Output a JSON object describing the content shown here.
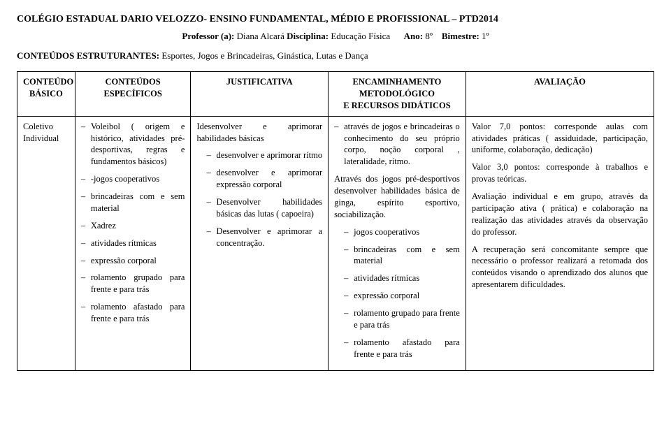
{
  "header": {
    "title": "COLÉGIO ESTADUAL DARIO VELOZZO- ENSINO FUNDAMENTAL, MÉDIO E PROFISSIONAL – PTD2014",
    "line2": {
      "prof_label": "Professor (a):",
      "prof_value": "Diana Alcará",
      "disc_label": "Disciplina:",
      "disc_value": "Educação Física",
      "ano_label": "Ano:",
      "ano_value": "8º",
      "bim_label": "Bimestre:",
      "bim_value": "1º"
    },
    "line3": {
      "label": "CONTEÚDOS ESTRUTURANTES:",
      "value": "Esportes, Jogos e Brincadeiras, Ginástica, Lutas e Dança"
    }
  },
  "table": {
    "headers": {
      "c1a": "CONTEÚDO",
      "c1b": "BÁSICO",
      "c2a": "CONTEÚDOS",
      "c2b": "ESPECÍFICOS",
      "c3": "JUSTIFICATIVA",
      "c4a": "ENCAMINHAMENTO",
      "c4b": "METODOLÓGICO",
      "c4c": "E RECURSOS DIDÁTICOS",
      "c5": "AVALIAÇÃO"
    },
    "row": {
      "basico": {
        "l1": "Coletivo",
        "l2": "Individual"
      },
      "especificos": [
        "Voleibol ( origem e histórico, atividades pré-desportivas, regras e fundamentos básicos)",
        "-jogos cooperativos",
        "brincadeiras com e sem material",
        "Xadrez",
        "atividades rítmicas",
        "expressão corporal",
        "rolamento grupado para frente e para trás",
        "rolamento afastado para frente e para trás"
      ],
      "justificativa": {
        "lead": "Idesenvolver e aprimorar habilidades básicas",
        "items": [
          "desenvolver e aprimorar rítmo",
          "desenvolver e aprimorar expressão corporal",
          "Desenvolver habilidades básicas das lutas ( capoeira)",
          "Desenvolver e aprimorar a concentração."
        ]
      },
      "encaminhamento": {
        "firstItem": "através de jogos e brincadeiras o conhecimento do seu próprio corpo, noção corporal , lateralidade, rítmo.",
        "paragraph": "Através dos jogos pré-desportivos desenvolver habilidades básica de ginga, espírito esportivo, sociabilização.",
        "items": [
          "jogos cooperativos",
          "brincadeiras com e sem material",
          "atividades rítmicas",
          "expressão corporal",
          "rolamento grupado para frente e para trás",
          "rolamento afastado para frente e para trás"
        ]
      },
      "avaliacao": {
        "p1": "Valor 7,0 pontos: corresponde aulas com atividades práticas ( assiduidade, participação, uniforme, colaboração, dedicação)",
        "p2": "Valor 3,0 pontos: corresponde à trabalhos e provas teóricas.",
        "p3": "Avaliação individual e em grupo, através da participação ativa ( prática) e colaboração na realização das atividades através da observação do professor.",
        "p4": "A recuperação será concomitante sempre que necessário o professor realizará a retomada dos conteúdos visando o aprendizado dos alunos que apresentarem dificuldades."
      }
    }
  }
}
